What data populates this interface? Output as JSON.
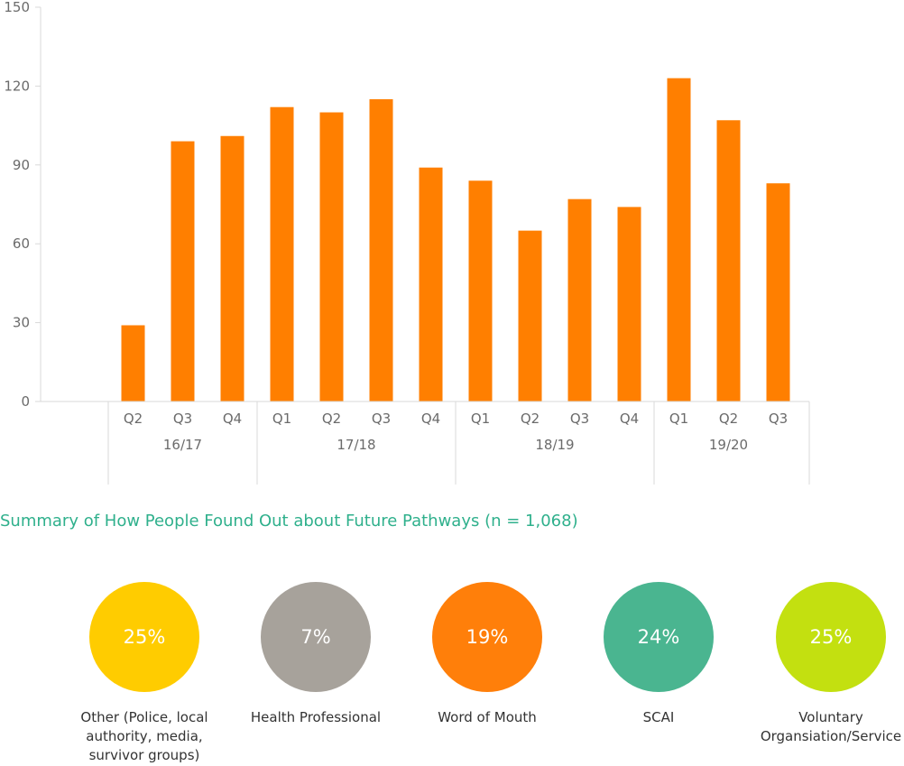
{
  "chart_data": {
    "type": "bar",
    "categories": [
      "Q2",
      "Q3",
      "Q4",
      "Q1",
      "Q2",
      "Q3",
      "Q4",
      "Q1",
      "Q2",
      "Q3",
      "Q4",
      "Q1",
      "Q2",
      "Q3"
    ],
    "groups": [
      {
        "label": "16/17",
        "count": 3
      },
      {
        "label": "17/18",
        "count": 4
      },
      {
        "label": "18/19",
        "count": 4
      },
      {
        "label": "19/20",
        "count": 3
      }
    ],
    "values": [
      29,
      99,
      101,
      112,
      110,
      115,
      89,
      84,
      65,
      77,
      74,
      123,
      107,
      83
    ],
    "ylim": [
      0,
      150
    ],
    "yticks": [
      "0",
      "30",
      "60",
      "90",
      "120",
      "150"
    ],
    "bar_color": "#ff7f00",
    "grid": false
  },
  "summary": {
    "title": "Summary of How People Found Out about Future Pathways (n = 1,068)",
    "items": [
      {
        "percent": "25%",
        "label": "Other (Police, local authority, media, survivor groups)",
        "color": "#ffcc00"
      },
      {
        "percent": "7%",
        "label": "Health Professional",
        "color": "#a7a29b"
      },
      {
        "percent": "19%",
        "label": "Word of Mouth",
        "color": "#ff7f0a"
      },
      {
        "percent": "24%",
        "label": "SCAI",
        "color": "#4ab590"
      },
      {
        "percent": "25%",
        "label": "Voluntary Organsiation/Service",
        "color": "#c3e010"
      }
    ]
  }
}
